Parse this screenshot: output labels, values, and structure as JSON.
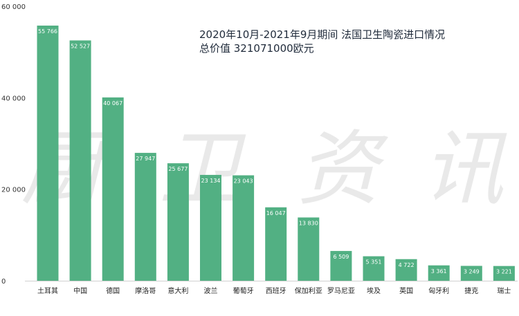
{
  "chart_data": {
    "type": "bar",
    "title_lines": [
      "2020年10月-2021年9月期间 法国卫生陶瓷进口情况",
      "总价值 321071000欧元"
    ],
    "xlabel": "",
    "ylabel": "",
    "ylim": [
      0,
      60000
    ],
    "yticks": [
      0,
      20000,
      40000,
      60000
    ],
    "ytick_labels": [
      "0",
      "20 000",
      "40 000",
      "60 000"
    ],
    "grid": false,
    "categories": [
      "土耳其",
      "中国",
      "德国",
      "摩洛哥",
      "意大利",
      "波兰",
      "葡萄牙",
      "西班牙",
      "保加利亚",
      "罗马尼亚",
      "埃及",
      "英国",
      "匈牙利",
      "捷克",
      "瑞士"
    ],
    "values": [
      55766,
      52527,
      40067,
      27947,
      25677,
      23134,
      23043,
      16047,
      13830,
      6509,
      5351,
      4722,
      3361,
      3249,
      3221
    ],
    "value_labels": [
      "55 766",
      "52 527",
      "40 067",
      "27 947",
      "25 677",
      "23 134",
      "23 043",
      "16 047",
      "13 830",
      "6 509",
      "5 351",
      "4 722",
      "3 361",
      "3 249",
      "3 221"
    ],
    "bar_color": "#52b083"
  },
  "watermark": [
    "厨",
    "卫",
    "资",
    "讯"
  ]
}
